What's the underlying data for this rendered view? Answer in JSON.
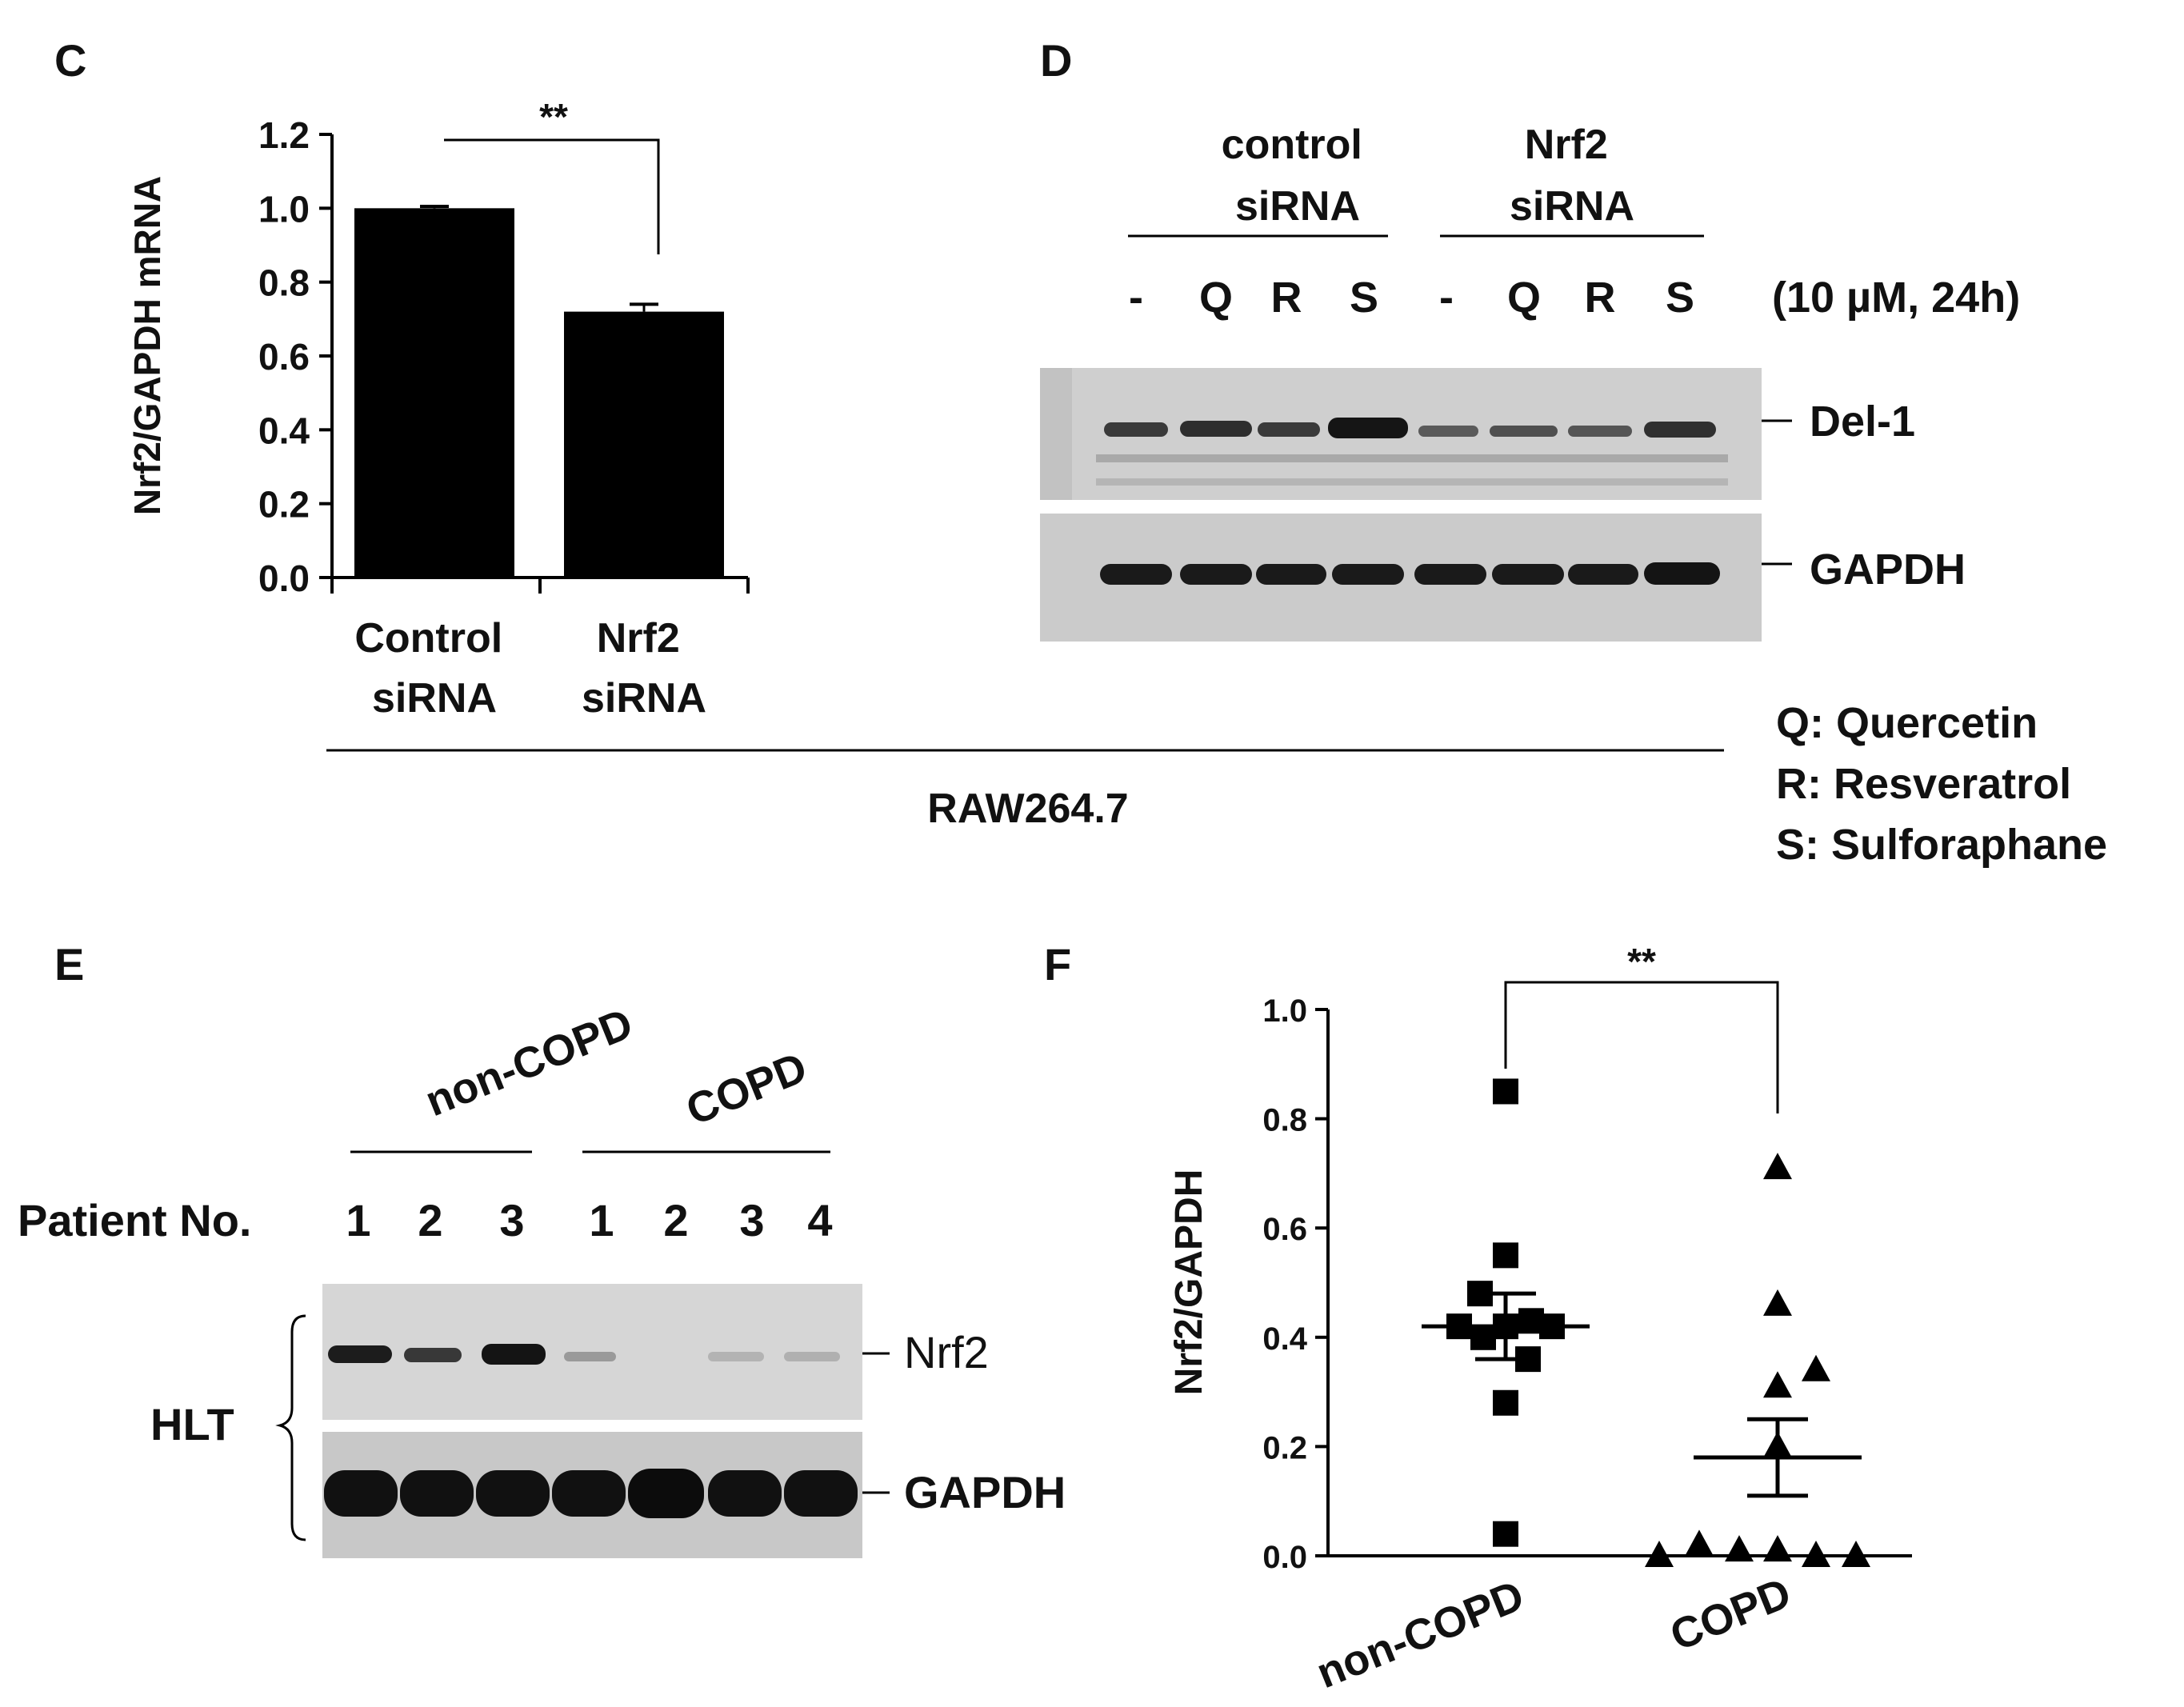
{
  "panel_C": {
    "letter": "C",
    "ylabel": "Nrf2/GAPDH mRNA",
    "significance": "**",
    "category_lines": [
      [
        "Control",
        "siRNA"
      ],
      [
        "Nrf2",
        "siRNA"
      ]
    ]
  },
  "panel_D": {
    "letter": "D",
    "group_labels": [
      [
        "control",
        "siRNA"
      ],
      [
        "Nrf2",
        "siRNA"
      ]
    ],
    "lanes": [
      "-",
      "Q",
      "R",
      "S",
      "-",
      "Q",
      "R",
      "S"
    ],
    "treatment": "(10 µM, 24h)",
    "bands": [
      "Del-1",
      "GAPDH"
    ],
    "legend": [
      "Q: Quercetin",
      "R: Resveratrol",
      "S: Sulforaphane"
    ]
  },
  "cell_line": "RAW264.7",
  "panel_E": {
    "letter": "E",
    "group_labels": [
      "non-COPD",
      "COPD"
    ],
    "patient_label": "Patient No.",
    "patients": [
      "1",
      "2",
      "3",
      "1",
      "2",
      "3",
      "4"
    ],
    "bands": [
      "Nrf2",
      "GAPDH"
    ],
    "tissue": "HLT"
  },
  "panel_F": {
    "letter": "F",
    "ylabel": "Nrf2/GAPDH",
    "significance": "**"
  },
  "chart_data": [
    {
      "type": "bar",
      "categories": [
        "Control siRNA",
        "Nrf2 siRNA"
      ],
      "values": [
        1.0,
        0.72
      ],
      "errors": [
        0.005,
        0.02
      ],
      "ylabel": "Nrf2/GAPDH mRNA",
      "ylim": [
        0,
        1.2
      ],
      "yticks": [
        0.0,
        0.2,
        0.4,
        0.6,
        0.8,
        1.0,
        1.2
      ],
      "color": "#000000"
    },
    {
      "type": "scatter",
      "categories": [
        "non-COPD",
        "COPD"
      ],
      "ylabel": "Nrf2/GAPDH",
      "ylim": [
        0,
        1.0
      ],
      "yticks": [
        0.0,
        0.2,
        0.4,
        0.6,
        0.8,
        1.0
      ],
      "series": [
        {
          "values": [
            0.85,
            0.55,
            0.48,
            0.43,
            0.42,
            0.42,
            0.42,
            0.4,
            0.36,
            0.28,
            0.04
          ],
          "marker": "square",
          "mean": 0.42,
          "sem_low": 0.36,
          "sem_high": 0.48
        },
        {
          "values": [
            0.71,
            0.46,
            0.34,
            0.31,
            0.2,
            0.02,
            0.01,
            0.01,
            0.0,
            0.0,
            0.0
          ],
          "marker": "triangle",
          "mean": 0.18,
          "sem_low": 0.11,
          "sem_high": 0.25
        }
      ]
    }
  ]
}
